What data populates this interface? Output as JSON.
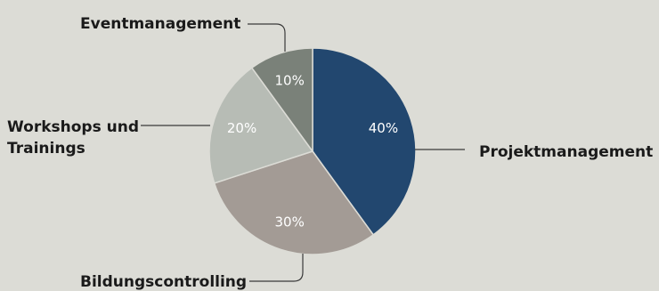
{
  "chart_data": {
    "type": "pie",
    "title": "",
    "slices": [
      {
        "label": "Projektmanagement",
        "value": 40,
        "value_label": "40%",
        "color": "#22476f",
        "text_color": "#ffffff"
      },
      {
        "label": "Bildungscontrolling",
        "value": 30,
        "value_label": "30%",
        "color": "#a39b95",
        "text_color": "#ffffff"
      },
      {
        "label_lines": [
          "Workshops und",
          "Trainings"
        ],
        "value": 20,
        "value_label": "20%",
        "color": "#b7bcb5",
        "text_color": "#ffffff"
      },
      {
        "label": "Eventmanagement",
        "value": 10,
        "value_label": "10%",
        "color": "#7a8179",
        "text_color": "#ffffff"
      }
    ],
    "start_angle_deg": 0,
    "direction": "clockwise",
    "legend": "none",
    "labels": "outside with leader lines"
  }
}
